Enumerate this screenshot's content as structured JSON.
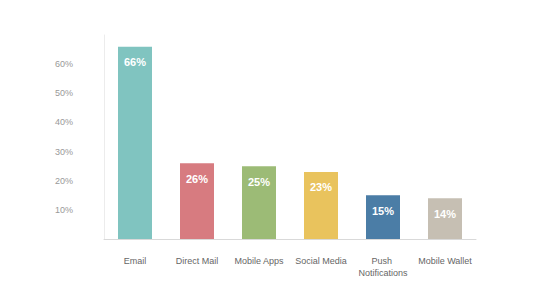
{
  "chart_data": {
    "type": "bar",
    "categories": [
      "Email",
      "Direct Mail",
      "Mobile Apps",
      "Social Media",
      "Push Notifications",
      "Mobile Wallet"
    ],
    "values": [
      66,
      26,
      25,
      23,
      15,
      14
    ],
    "value_labels": [
      "66%",
      "26%",
      "25%",
      "23%",
      "15%",
      "14%"
    ],
    "colors": [
      "#80c4c0",
      "#d77b80",
      "#9cbb76",
      "#e9c35d",
      "#4b7da6",
      "#c6bfb3"
    ],
    "ylim": [
      0,
      70
    ],
    "yticks": [
      {
        "value": 10,
        "label": "10%"
      },
      {
        "value": 20,
        "label": "20%"
      },
      {
        "value": 30,
        "label": "30%"
      },
      {
        "value": 40,
        "label": "40%"
      },
      {
        "value": 50,
        "label": "50%"
      },
      {
        "value": 60,
        "label": "60%"
      }
    ],
    "grid": false,
    "data_labels": true
  }
}
